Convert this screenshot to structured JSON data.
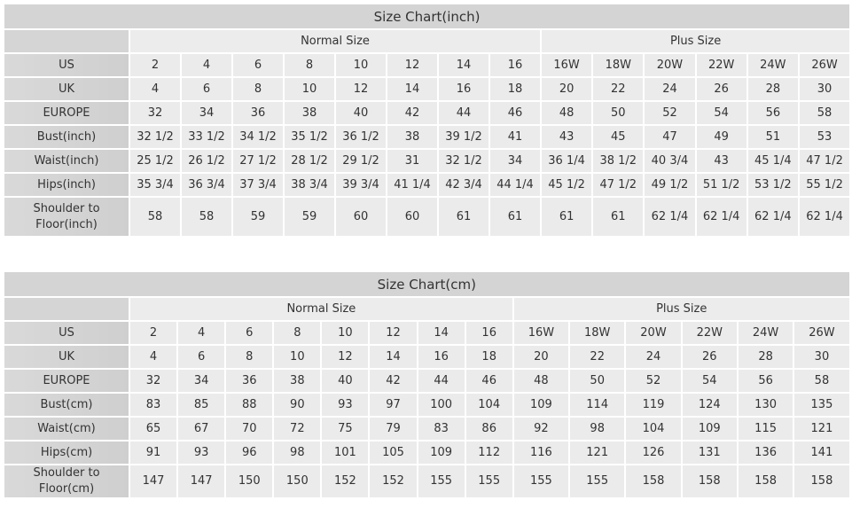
{
  "inch_chart": {
    "title": "Size Chart(inch)",
    "groups": [
      "Normal Size",
      "Plus Size"
    ],
    "rows": [
      {
        "label": "US",
        "values": [
          "2",
          "4",
          "6",
          "8",
          "10",
          "12",
          "14",
          "16",
          "16W",
          "18W",
          "20W",
          "22W",
          "24W",
          "26W"
        ]
      },
      {
        "label": "UK",
        "values": [
          "4",
          "6",
          "8",
          "10",
          "12",
          "14",
          "16",
          "18",
          "20",
          "22",
          "24",
          "26",
          "28",
          "30"
        ]
      },
      {
        "label": "EUROPE",
        "values": [
          "32",
          "34",
          "36",
          "38",
          "40",
          "42",
          "44",
          "46",
          "48",
          "50",
          "52",
          "54",
          "56",
          "58"
        ]
      },
      {
        "label": "Bust(inch)",
        "values": [
          "32 1/2",
          "33 1/2",
          "34 1/2",
          "35 1/2",
          "36 1/2",
          "38",
          "39 1/2",
          "41",
          "43",
          "45",
          "47",
          "49",
          "51",
          "53"
        ]
      },
      {
        "label": "Waist(inch)",
        "values": [
          "25 1/2",
          "26 1/2",
          "27 1/2",
          "28 1/2",
          "29 1/2",
          "31",
          "32 1/2",
          "34",
          "36 1/4",
          "38 1/2",
          "40 3/4",
          "43",
          "45 1/4",
          "47 1/2"
        ]
      },
      {
        "label": "Hips(inch)",
        "values": [
          "35 3/4",
          "36 3/4",
          "37 3/4",
          "38 3/4",
          "39 3/4",
          "41 1/4",
          "42 3/4",
          "44 1/4",
          "45 1/2",
          "47 1/2",
          "49 1/2",
          "51 1/2",
          "53 1/2",
          "55 1/2"
        ]
      },
      {
        "label": "Shoulder to Floor(inch)",
        "values": [
          "58",
          "58",
          "59",
          "59",
          "60",
          "60",
          "61",
          "61",
          "61",
          "61",
          "62 1/4",
          "62 1/4",
          "62 1/4",
          "62 1/4"
        ]
      }
    ]
  },
  "cm_chart": {
    "title": "Size Chart(cm)",
    "groups": [
      "Normal Size",
      "Plus Size"
    ],
    "rows": [
      {
        "label": "US",
        "values": [
          "2",
          "4",
          "6",
          "8",
          "10",
          "12",
          "14",
          "16",
          "16W",
          "18W",
          "20W",
          "22W",
          "24W",
          "26W"
        ]
      },
      {
        "label": "UK",
        "values": [
          "4",
          "6",
          "8",
          "10",
          "12",
          "14",
          "16",
          "18",
          "20",
          "22",
          "24",
          "26",
          "28",
          "30"
        ]
      },
      {
        "label": "EUROPE",
        "values": [
          "32",
          "34",
          "36",
          "38",
          "40",
          "42",
          "44",
          "46",
          "48",
          "50",
          "52",
          "54",
          "56",
          "58"
        ]
      },
      {
        "label": "Bust(cm)",
        "values": [
          "83",
          "85",
          "88",
          "90",
          "93",
          "97",
          "100",
          "104",
          "109",
          "114",
          "119",
          "124",
          "130",
          "135"
        ]
      },
      {
        "label": "Waist(cm)",
        "values": [
          "65",
          "67",
          "70",
          "72",
          "75",
          "79",
          "83",
          "86",
          "92",
          "98",
          "104",
          "109",
          "115",
          "121"
        ]
      },
      {
        "label": "Hips(cm)",
        "values": [
          "91",
          "93",
          "96",
          "98",
          "101",
          "105",
          "109",
          "112",
          "116",
          "121",
          "126",
          "131",
          "136",
          "141"
        ]
      },
      {
        "label": "Shoulder to Floor(cm)",
        "values": [
          "147",
          "147",
          "150",
          "150",
          "152",
          "152",
          "155",
          "155",
          "155",
          "155",
          "158",
          "158",
          "158",
          "158"
        ]
      }
    ]
  }
}
